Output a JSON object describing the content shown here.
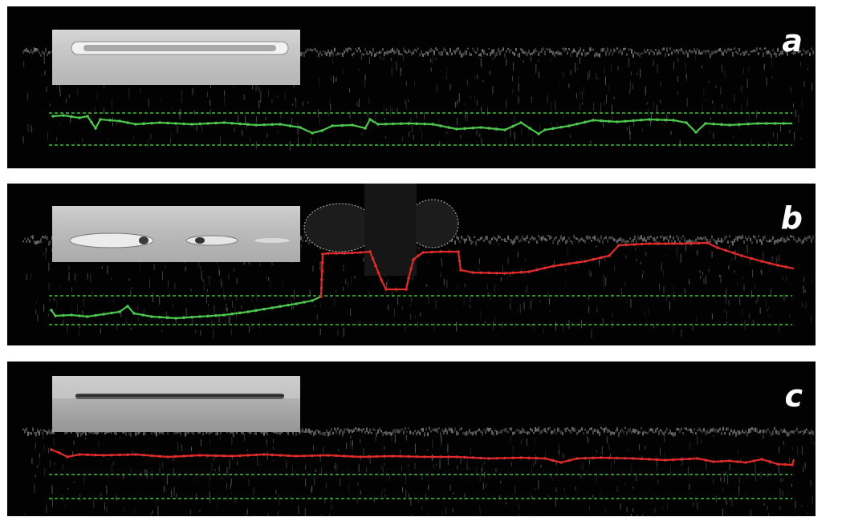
{
  "panels": [
    {
      "id": "a",
      "label": "a"
    },
    {
      "id": "b",
      "label": "b"
    },
    {
      "id": "c",
      "label": "c"
    }
  ],
  "colors": {
    "background": "#020202",
    "guide_line": "#3fbf3f",
    "green_trace": "#4cc64c",
    "red_trace": "#e02b2b",
    "surface_noise": "#e6e6e6"
  }
}
